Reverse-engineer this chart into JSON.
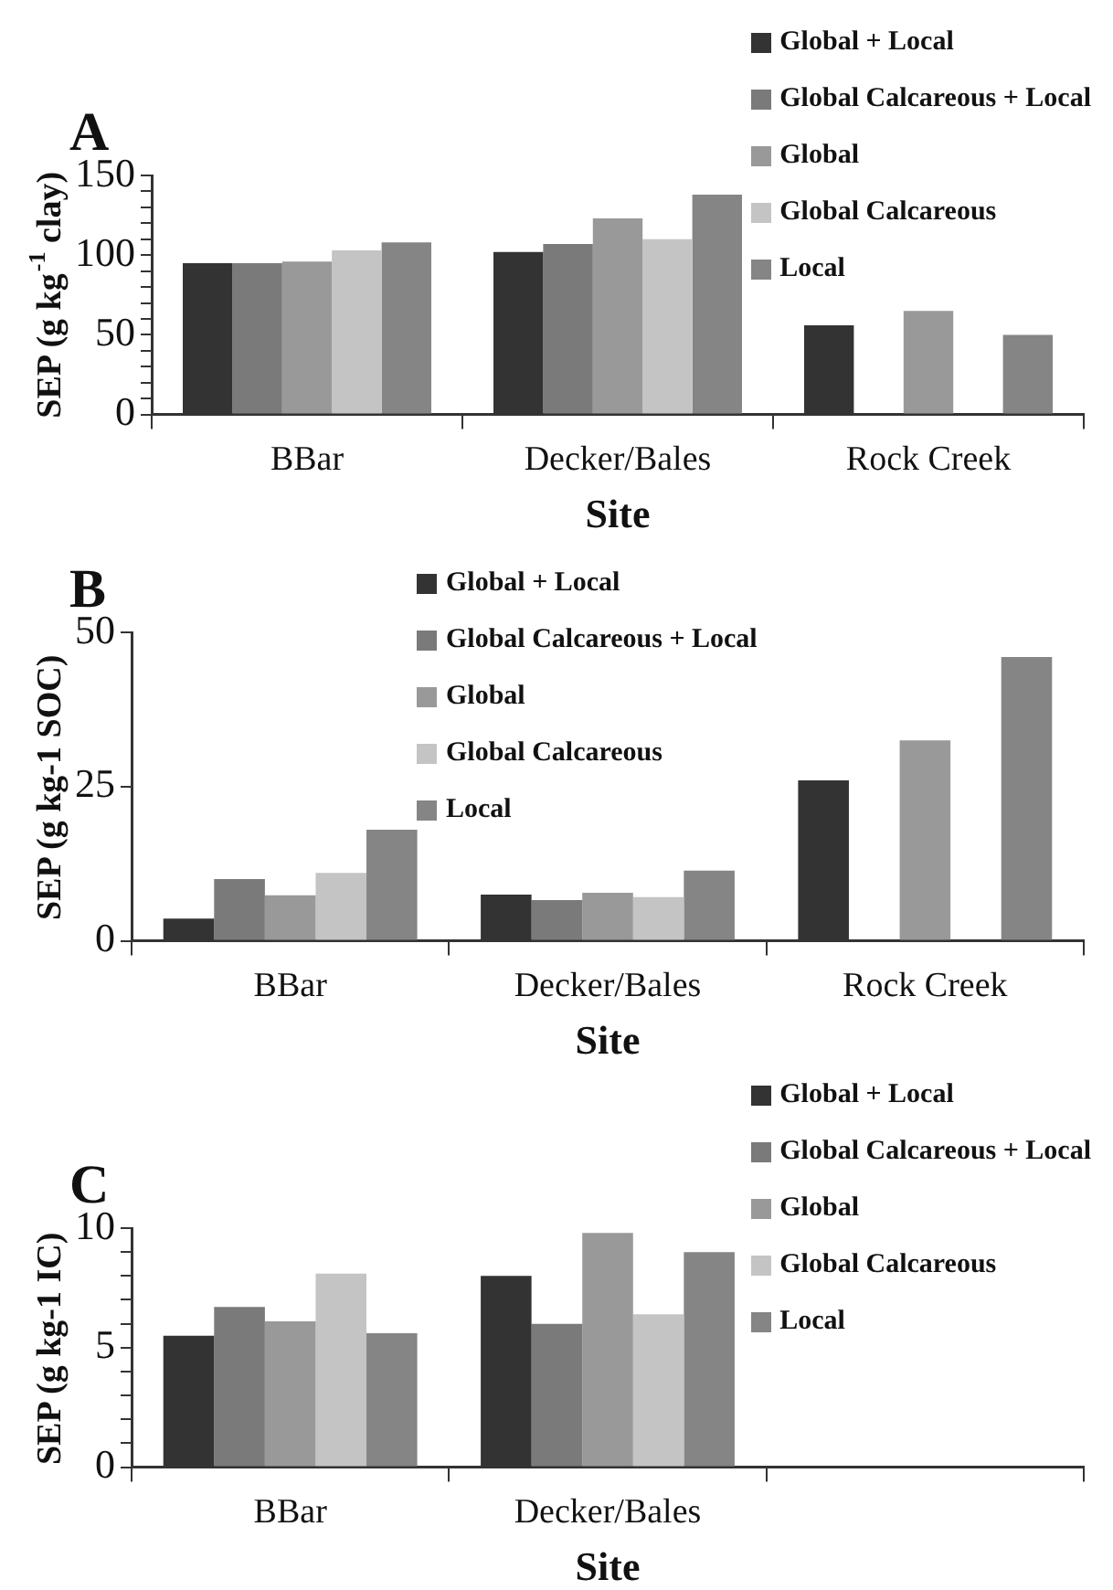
{
  "chart_data": [
    {
      "type": "bar",
      "title": "A",
      "xlabel": "Site",
      "ylabel": "SEP (g kg$^{-1}$ clay)",
      "categories": [
        "BBar",
        "Decker/Bales",
        "Rock Creek"
      ],
      "ylim": [
        0,
        150
      ],
      "yticks": [
        0,
        {
          "value": 10,
          "label": null
        },
        {
          "value": 20,
          "label": null
        },
        {
          "value": 30,
          "label": null
        },
        {
          "value": 40,
          "label": null
        },
        50,
        {
          "value": 60,
          "label": null
        },
        {
          "value": 70,
          "label": null
        },
        {
          "value": 80,
          "label": null
        },
        {
          "value": 90,
          "label": null
        },
        100,
        {
          "value": 110,
          "label": null
        },
        {
          "value": 120,
          "label": null
        },
        {
          "value": 130,
          "label": null
        },
        {
          "value": 140,
          "label": null
        },
        150
      ],
      "grid": false,
      "legend": "top right",
      "series": [
        {
          "name": "Global + Local",
          "color": "#333333",
          "values": [
            95,
            102,
            56
          ]
        },
        {
          "name": "Global Calcareous + Local",
          "color": "#7a7a7a",
          "values": [
            95,
            107,
            null
          ]
        },
        {
          "name": "Global",
          "color": "#999999",
          "values": [
            96,
            123,
            65
          ]
        },
        {
          "name": "Global Calcareous",
          "color": "#c4c4c4",
          "values": [
            103,
            110,
            null
          ]
        },
        {
          "name": "Local",
          "color": "#858585",
          "values": [
            108,
            138,
            50
          ]
        }
      ]
    },
    {
      "type": "bar",
      "title": "B",
      "xlabel": "Site",
      "ylabel": "SEP (g kg-1 SOC)",
      "categories": [
        "BBar",
        "Decker/Bales",
        "Rock Creek"
      ],
      "ylim": [
        0,
        50
      ],
      "yticks": [
        0,
        25,
        50
      ],
      "grid": false,
      "legend": "top",
      "series": [
        {
          "name": "Global + Local",
          "color": "#333333",
          "values": [
            3.6,
            7.5,
            26
          ]
        },
        {
          "name": "Global Calcareous + Local",
          "color": "#7a7a7a",
          "values": [
            10,
            6.6,
            null
          ]
        },
        {
          "name": "Global",
          "color": "#999999",
          "values": [
            7.4,
            7.8,
            32.5
          ]
        },
        {
          "name": "Global Calcareous",
          "color": "#c4c4c4",
          "values": [
            11,
            7.1,
            null
          ]
        },
        {
          "name": "Local",
          "color": "#858585",
          "values": [
            18,
            11.4,
            46
          ]
        }
      ]
    },
    {
      "type": "bar",
      "title": "C",
      "xlabel": "Site",
      "ylabel": "SEP (g kg-1 IC)",
      "categories": [
        "BBar",
        "Decker/Bales",
        null
      ],
      "ylim": [
        0,
        10
      ],
      "yticks": [
        0,
        {
          "value": 1,
          "label": null
        },
        {
          "value": 2,
          "label": null
        },
        {
          "value": 3,
          "label": null
        },
        {
          "value": 4,
          "label": null
        },
        5,
        {
          "value": 6,
          "label": null
        },
        {
          "value": 7,
          "label": null
        },
        {
          "value": 8,
          "label": null
        },
        {
          "value": 9,
          "label": null
        },
        10
      ],
      "grid": false,
      "legend": "top right",
      "series": [
        {
          "name": "Global + Local",
          "color": "#333333",
          "values": [
            5.5,
            8.0,
            null
          ]
        },
        {
          "name": "Global Calcareous + Local",
          "color": "#7a7a7a",
          "values": [
            6.7,
            6.0,
            null
          ]
        },
        {
          "name": "Global",
          "color": "#999999",
          "values": [
            6.1,
            9.8,
            null
          ]
        },
        {
          "name": "Global Calcareous",
          "color": "#c4c4c4",
          "values": [
            8.1,
            6.4,
            null
          ]
        },
        {
          "name": "Local",
          "color": "#858585",
          "values": [
            5.6,
            9.0,
            null
          ]
        }
      ]
    }
  ]
}
